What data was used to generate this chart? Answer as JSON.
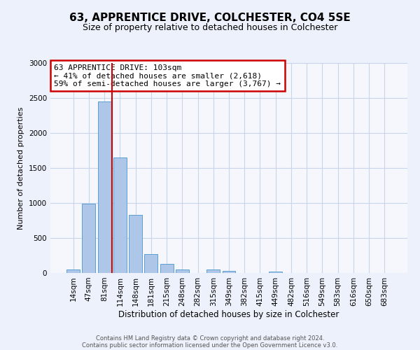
{
  "title": "63, APPRENTICE DRIVE, COLCHESTER, CO4 5SE",
  "subtitle": "Size of property relative to detached houses in Colchester",
  "xlabel": "Distribution of detached houses by size in Colchester",
  "ylabel": "Number of detached properties",
  "categories": [
    "14sqm",
    "47sqm",
    "81sqm",
    "114sqm",
    "148sqm",
    "181sqm",
    "215sqm",
    "248sqm",
    "282sqm",
    "315sqm",
    "349sqm",
    "382sqm",
    "415sqm",
    "449sqm",
    "482sqm",
    "516sqm",
    "549sqm",
    "583sqm",
    "616sqm",
    "650sqm",
    "683sqm"
  ],
  "values": [
    55,
    990,
    2455,
    1650,
    830,
    270,
    130,
    50,
    0,
    50,
    30,
    0,
    0,
    20,
    0,
    0,
    0,
    0,
    0,
    0,
    0
  ],
  "bar_color": "#aec6e8",
  "bar_edge_color": "#5a9fd4",
  "vline_color": "#cc0000",
  "vline_pos": 2.5,
  "annotation_box_text": "63 APPRENTICE DRIVE: 103sqm\n← 41% of detached houses are smaller (2,618)\n59% of semi-detached houses are larger (3,767) →",
  "annotation_box_color": "#cc0000",
  "ylim": [
    0,
    3000
  ],
  "yticks": [
    0,
    500,
    1000,
    1500,
    2000,
    2500,
    3000
  ],
  "footer_line1": "Contains HM Land Registry data © Crown copyright and database right 2024.",
  "footer_line2": "Contains public sector information licensed under the Open Government Licence v3.0.",
  "bg_color": "#edf1fb",
  "plot_bg_color": "#f5f7fd",
  "grid_color": "#c8d4e8",
  "title_fontsize": 11,
  "subtitle_fontsize": 9,
  "ylabel_fontsize": 8,
  "xlabel_fontsize": 8.5,
  "tick_fontsize": 7.5,
  "annot_fontsize": 8,
  "footer_fontsize": 6
}
